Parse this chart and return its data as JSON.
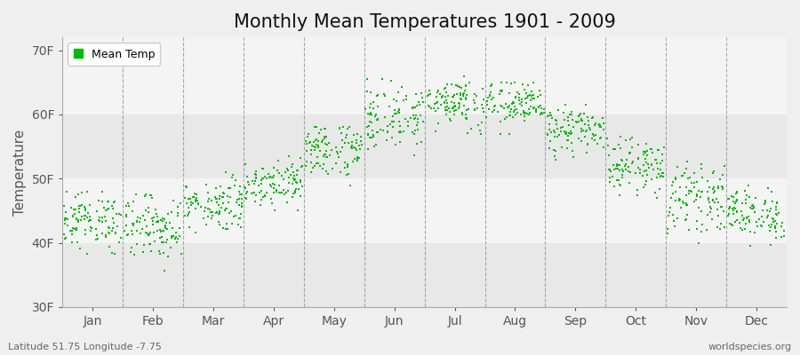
{
  "title": "Monthly Mean Temperatures 1901 - 2009",
  "ylabel": "Temperature",
  "xlabel_bottom_left": "Latitude 51.75 Longitude -7.75",
  "xlabel_bottom_right": "worldspecies.org",
  "legend_label": "Mean Temp",
  "dot_color": "#00BB00",
  "background_color": "#EFEFEF",
  "plot_bg_color": "#EFEFEF",
  "ylim": [
    30,
    72
  ],
  "yticks": [
    30,
    40,
    50,
    60,
    70
  ],
  "ytick_labels": [
    "30F",
    "40F",
    "50F",
    "60F",
    "70F"
  ],
  "months": [
    "Jan",
    "Feb",
    "Mar",
    "Apr",
    "May",
    "Jun",
    "Jul",
    "Aug",
    "Sep",
    "Oct",
    "Nov",
    "Dec"
  ],
  "monthly_means_F": [
    43.5,
    42.5,
    46.0,
    49.5,
    54.5,
    59.5,
    62.0,
    61.5,
    57.5,
    52.0,
    47.0,
    44.5
  ],
  "monthly_std_F": [
    2.2,
    2.5,
    2.0,
    1.8,
    2.2,
    2.5,
    2.0,
    1.8,
    1.8,
    2.0,
    2.5,
    2.0
  ],
  "monthly_min_F": [
    37.0,
    35.0,
    41.0,
    45.0,
    49.0,
    53.0,
    57.0,
    57.0,
    53.0,
    47.0,
    40.0,
    39.0
  ],
  "monthly_max_F": [
    48.0,
    47.5,
    51.0,
    53.5,
    58.0,
    65.5,
    66.0,
    65.0,
    61.5,
    58.0,
    55.0,
    49.0
  ],
  "n_years": 109,
  "title_fontsize": 15,
  "tick_fontsize": 10,
  "label_fontsize": 11,
  "figsize": [
    9.0,
    4.0
  ],
  "dpi": 100,
  "band_colors": [
    "#E8E8E8",
    "#F4F4F4",
    "#E8E8E8",
    "#F4F4F4"
  ],
  "band_ranges": [
    [
      30,
      40
    ],
    [
      40,
      50
    ],
    [
      50,
      60
    ],
    [
      60,
      72
    ]
  ]
}
